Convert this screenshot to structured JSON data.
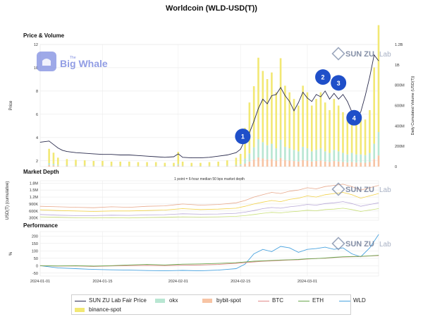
{
  "chart_data": {
    "type": "multi-panel",
    "title": "Worldcoin (WLD-USD(T))",
    "x_axis": {
      "ticks": [
        "2024-01-01",
        "2024-01-15",
        "2024-02-01",
        "2024-02-15",
        "2024-03-01"
      ],
      "range_days": [
        0,
        76
      ]
    },
    "legend": [
      {
        "name": "SUN ZU Lab Fair Price",
        "kind": "line",
        "color": "#2b2c4e"
      },
      {
        "name": "okx",
        "kind": "area",
        "color": "#b8e6d2"
      },
      {
        "name": "bybit-spot",
        "kind": "area",
        "color": "#f7c4a4"
      },
      {
        "name": "BTC",
        "kind": "line",
        "color": "#e28a8a"
      },
      {
        "name": "ETH",
        "kind": "line",
        "color": "#6aa84f"
      },
      {
        "name": "WLD",
        "kind": "line",
        "color": "#4aa3df"
      },
      {
        "name": "binance-spot",
        "kind": "area",
        "color": "#f2e874"
      }
    ],
    "panels": [
      {
        "id": "price",
        "title": "Price & Volume",
        "ylabel": "Price",
        "ylim": [
          1.5,
          12
        ],
        "yticks": [
          2,
          4,
          6,
          8,
          10,
          12
        ],
        "y2label": "Daily Cumulated Volume (USD(T))",
        "y2lim": [
          0,
          1200
        ],
        "y2ticks": [
          0,
          200,
          400,
          600,
          800,
          1000,
          1200
        ],
        "y2ticklabels": [
          "0",
          "200M",
          "400M",
          "600M",
          "800M",
          "1B",
          "1.2B"
        ],
        "price_series": {
          "name": "SUN ZU Lab Fair Price",
          "x_days": [
            0,
            2,
            3,
            4,
            5,
            6,
            8,
            10,
            12,
            14,
            16,
            18,
            20,
            22,
            24,
            26,
            28,
            30,
            31,
            32,
            34,
            36,
            38,
            40,
            42,
            44,
            45,
            46,
            47,
            48,
            49,
            50,
            51,
            52,
            53,
            54,
            55,
            56,
            57,
            58,
            59,
            60,
            61,
            62,
            63,
            64,
            65,
            66,
            67,
            68,
            69,
            70,
            71,
            72,
            73,
            74,
            75,
            76
          ],
          "values": [
            3.6,
            3.7,
            3.4,
            3.1,
            2.9,
            2.8,
            2.7,
            2.65,
            2.6,
            2.55,
            2.55,
            2.5,
            2.5,
            2.45,
            2.4,
            2.35,
            2.3,
            2.35,
            2.6,
            2.3,
            2.25,
            2.25,
            2.3,
            2.4,
            2.5,
            2.7,
            3.0,
            3.8,
            4.4,
            5.4,
            6.5,
            7.3,
            6.9,
            7.6,
            7.7,
            8.3,
            7.6,
            7.1,
            6.3,
            7.0,
            7.9,
            7.4,
            7.1,
            7.7,
            7.5,
            8.0,
            7.3,
            7.8,
            7.3,
            7.7,
            7.1,
            6.2,
            5.6,
            6.2,
            7.6,
            9.2,
            11.1,
            10.6
          ]
        },
        "volume_series": {
          "x_days": [
            2,
            3,
            4,
            6,
            8,
            10,
            12,
            14,
            16,
            18,
            20,
            22,
            24,
            26,
            28,
            30,
            31,
            32,
            34,
            36,
            38,
            40,
            42,
            44,
            45,
            46,
            47,
            48,
            49,
            50,
            51,
            52,
            53,
            54,
            55,
            56,
            57,
            58,
            59,
            60,
            61,
            62,
            63,
            64,
            65,
            66,
            67,
            68,
            69,
            70,
            71,
            72,
            73,
            74,
            75,
            76
          ],
          "binance-spot": [
            140,
            110,
            70,
            60,
            55,
            50,
            45,
            45,
            40,
            40,
            40,
            35,
            35,
            35,
            30,
            30,
            120,
            40,
            30,
            30,
            35,
            40,
            50,
            70,
            100,
            300,
            500,
            600,
            800,
            700,
            650,
            700,
            550,
            800,
            600,
            550,
            500,
            450,
            600,
            550,
            450,
            500,
            550,
            480,
            420,
            500,
            450,
            400,
            350,
            420,
            380,
            380,
            350,
            420,
            750,
            1050
          ],
          "okx": [
            20,
            15,
            10,
            8,
            7,
            7,
            6,
            6,
            5,
            5,
            5,
            5,
            5,
            5,
            4,
            4,
            15,
            5,
            4,
            4,
            5,
            5,
            7,
            10,
            15,
            50,
            80,
            120,
            180,
            160,
            140,
            150,
            120,
            180,
            130,
            120,
            110,
            100,
            130,
            120,
            100,
            110,
            120,
            100,
            90,
            110,
            100,
            90,
            80,
            90,
            80,
            80,
            75,
            90,
            150,
            230
          ],
          "bybit-spot": [
            15,
            12,
            8,
            6,
            5,
            5,
            5,
            5,
            4,
            4,
            4,
            4,
            4,
            4,
            3,
            3,
            10,
            4,
            3,
            3,
            4,
            4,
            5,
            7,
            10,
            30,
            50,
            70,
            90,
            80,
            70,
            75,
            60,
            85,
            65,
            60,
            55,
            50,
            65,
            60,
            50,
            55,
            60,
            50,
            45,
            55,
            50,
            45,
            40,
            45,
            40,
            40,
            38,
            45,
            75,
            110
          ]
        },
        "annotations": [
          {
            "label": "1",
            "x_day": 45.5,
            "y_value": 4.1
          },
          {
            "label": "2",
            "x_day": 63.5,
            "y_value": 9.2
          },
          {
            "label": "3",
            "x_day": 67,
            "y_value": 8.7
          },
          {
            "label": "4",
            "x_day": 70.5,
            "y_value": 5.7
          }
        ]
      },
      {
        "id": "depth",
        "title": "Market Depth",
        "subtitle": "1 point = 6-hour median 50 bps market depth",
        "ylabel": "USD(T) (cumulative)",
        "ylim": [
          200,
          1900
        ],
        "yticks": [
          300,
          600,
          900,
          1200,
          1500,
          1800
        ],
        "yticklabels": [
          "300K",
          "600K",
          "900K",
          "1.2M",
          "1.5M",
          "1.8M"
        ],
        "x_days": [
          0,
          4,
          8,
          12,
          16,
          20,
          24,
          28,
          32,
          36,
          40,
          44,
          46,
          48,
          50,
          52,
          54,
          56,
          58,
          60,
          62,
          64,
          66,
          68,
          70,
          72,
          74,
          76
        ],
        "cumulative_top": [
          800,
          780,
          760,
          740,
          780,
          760,
          800,
          820,
          900,
          850,
          880,
          950,
          1050,
          1200,
          1300,
          1400,
          1350,
          1450,
          1500,
          1600,
          1550,
          1650,
          1700,
          1750,
          1650,
          1500,
          1600,
          1700
        ],
        "binance_level": [
          650,
          620,
          600,
          580,
          600,
          600,
          620,
          640,
          700,
          660,
          680,
          720,
          800,
          900,
          980,
          1050,
          1000,
          1100,
          1150,
          1250,
          1200,
          1300,
          1350,
          1400,
          1300,
          1150,
          1250,
          1350
        ],
        "bybit_level": [
          450,
          420,
          400,
          400,
          420,
          410,
          430,
          440,
          480,
          460,
          470,
          500,
          550,
          620,
          700,
          750,
          720,
          780,
          820,
          880,
          850,
          920,
          950,
          1000,
          920,
          800,
          880,
          950
        ],
        "okx_level": [
          350,
          330,
          310,
          300,
          310,
          300,
          320,
          330,
          350,
          340,
          350,
          370,
          400,
          450,
          500,
          540,
          520,
          560,
          590,
          630,
          610,
          660,
          680,
          720,
          660,
          580,
          640,
          700
        ]
      },
      {
        "id": "performance",
        "title": "Performance",
        "ylabel": "%",
        "ylim": [
          -70,
          230
        ],
        "yticks": [
          -50,
          0,
          50,
          100,
          150,
          200
        ],
        "yticklabels": [
          "-50",
          "0",
          "50",
          "100",
          "150",
          "200"
        ],
        "x_days": [
          0,
          4,
          8,
          12,
          16,
          20,
          24,
          28,
          32,
          36,
          40,
          44,
          46,
          48,
          50,
          52,
          54,
          56,
          58,
          60,
          62,
          64,
          66,
          68,
          70,
          72,
          74,
          76
        ],
        "series": [
          {
            "name": "WLD",
            "values": [
              0,
              -15,
              -20,
              -25,
              -28,
              -30,
              -33,
              -35,
              -32,
              -35,
              -30,
              -20,
              10,
              80,
              110,
              95,
              130,
              120,
              90,
              110,
              115,
              125,
              110,
              120,
              80,
              60,
              120,
              210
            ]
          },
          {
            "name": "BTC",
            "values": [
              0,
              -3,
              -2,
              -5,
              -2,
              0,
              2,
              0,
              3,
              5,
              8,
              15,
              20,
              25,
              30,
              32,
              35,
              38,
              40,
              45,
              48,
              50,
              55,
              58,
              60,
              62,
              65,
              68
            ]
          },
          {
            "name": "ETH",
            "values": [
              0,
              -2,
              0,
              -3,
              0,
              5,
              8,
              5,
              10,
              12,
              15,
              20,
              25,
              30,
              33,
              35,
              38,
              40,
              42,
              46,
              48,
              52,
              56,
              60,
              62,
              63,
              66,
              70
            ]
          }
        ]
      }
    ],
    "watermark": {
      "brand": "SUN ZU",
      "suffix": "Lab",
      "logo_text": "Big Whale",
      "logo_small": "The"
    }
  }
}
